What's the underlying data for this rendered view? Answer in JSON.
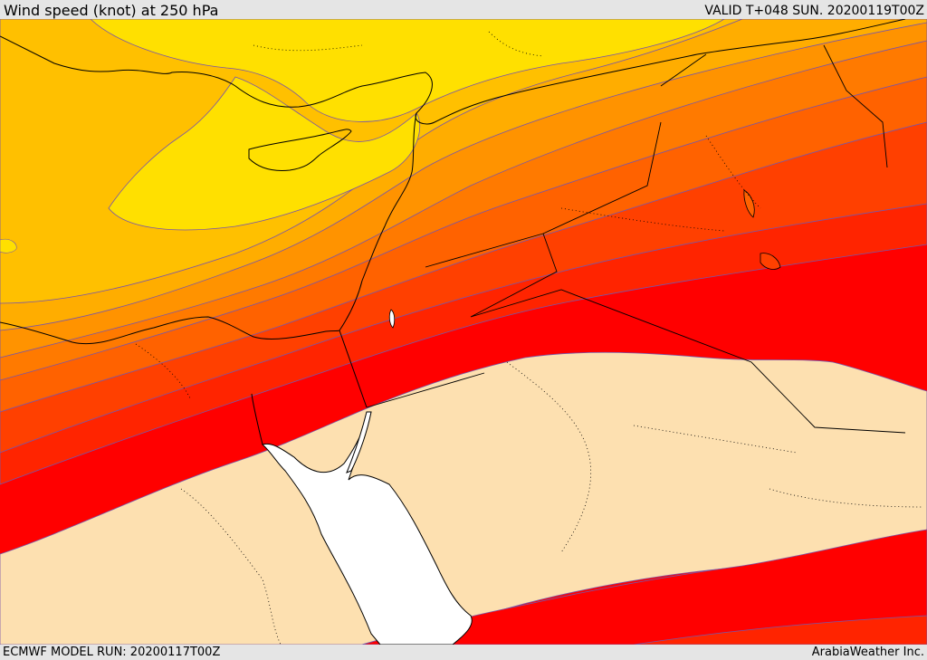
{
  "header": {
    "title": "Wind speed (knot) at 250 hPa",
    "valid": "VALID T+048 SUN. 20200119T00Z"
  },
  "footer": {
    "model_run": "ECMWF MODEL RUN: 20200117T00Z",
    "credit": "ArabiaWeather Inc."
  },
  "colors": {
    "band_yellow": "#ffe000",
    "band_gold": "#ffc000",
    "band_amber": "#ffad00",
    "band_orange1": "#ff9300",
    "band_orange2": "#ff7a00",
    "band_orange3": "#ff6200",
    "band_redorange": "#ff4000",
    "band_red1": "#ff2400",
    "band_red2": "#ff0000",
    "low_wind": "#fde0b0",
    "sea": "#ffffff"
  }
}
